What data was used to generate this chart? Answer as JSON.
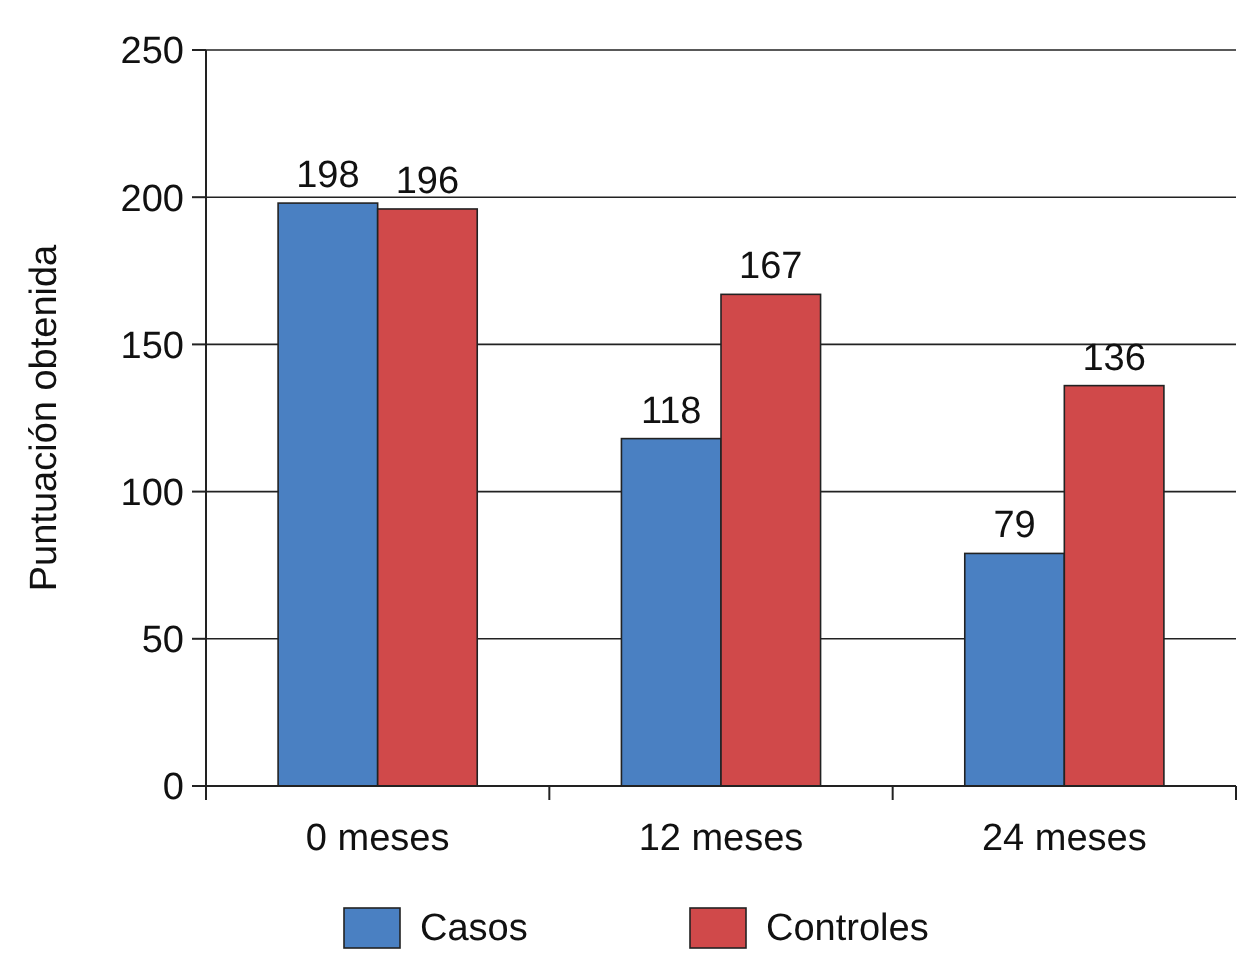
{
  "chart_data": {
    "type": "bar",
    "ylabel": "Puntuación obtenida",
    "categories": [
      "0 meses",
      "12 meses",
      "24 meses"
    ],
    "series": [
      {
        "name": "Casos",
        "color": "#4a80c2",
        "values": [
          198,
          118,
          79
        ]
      },
      {
        "name": "Controles",
        "color": "#d0494a",
        "values": [
          196,
          167,
          136
        ]
      }
    ],
    "ylim": [
      0,
      250
    ],
    "yticks": [
      0,
      50,
      100,
      150,
      200,
      250
    ],
    "grid": "y",
    "legend": "bottom",
    "data_labels": true
  }
}
